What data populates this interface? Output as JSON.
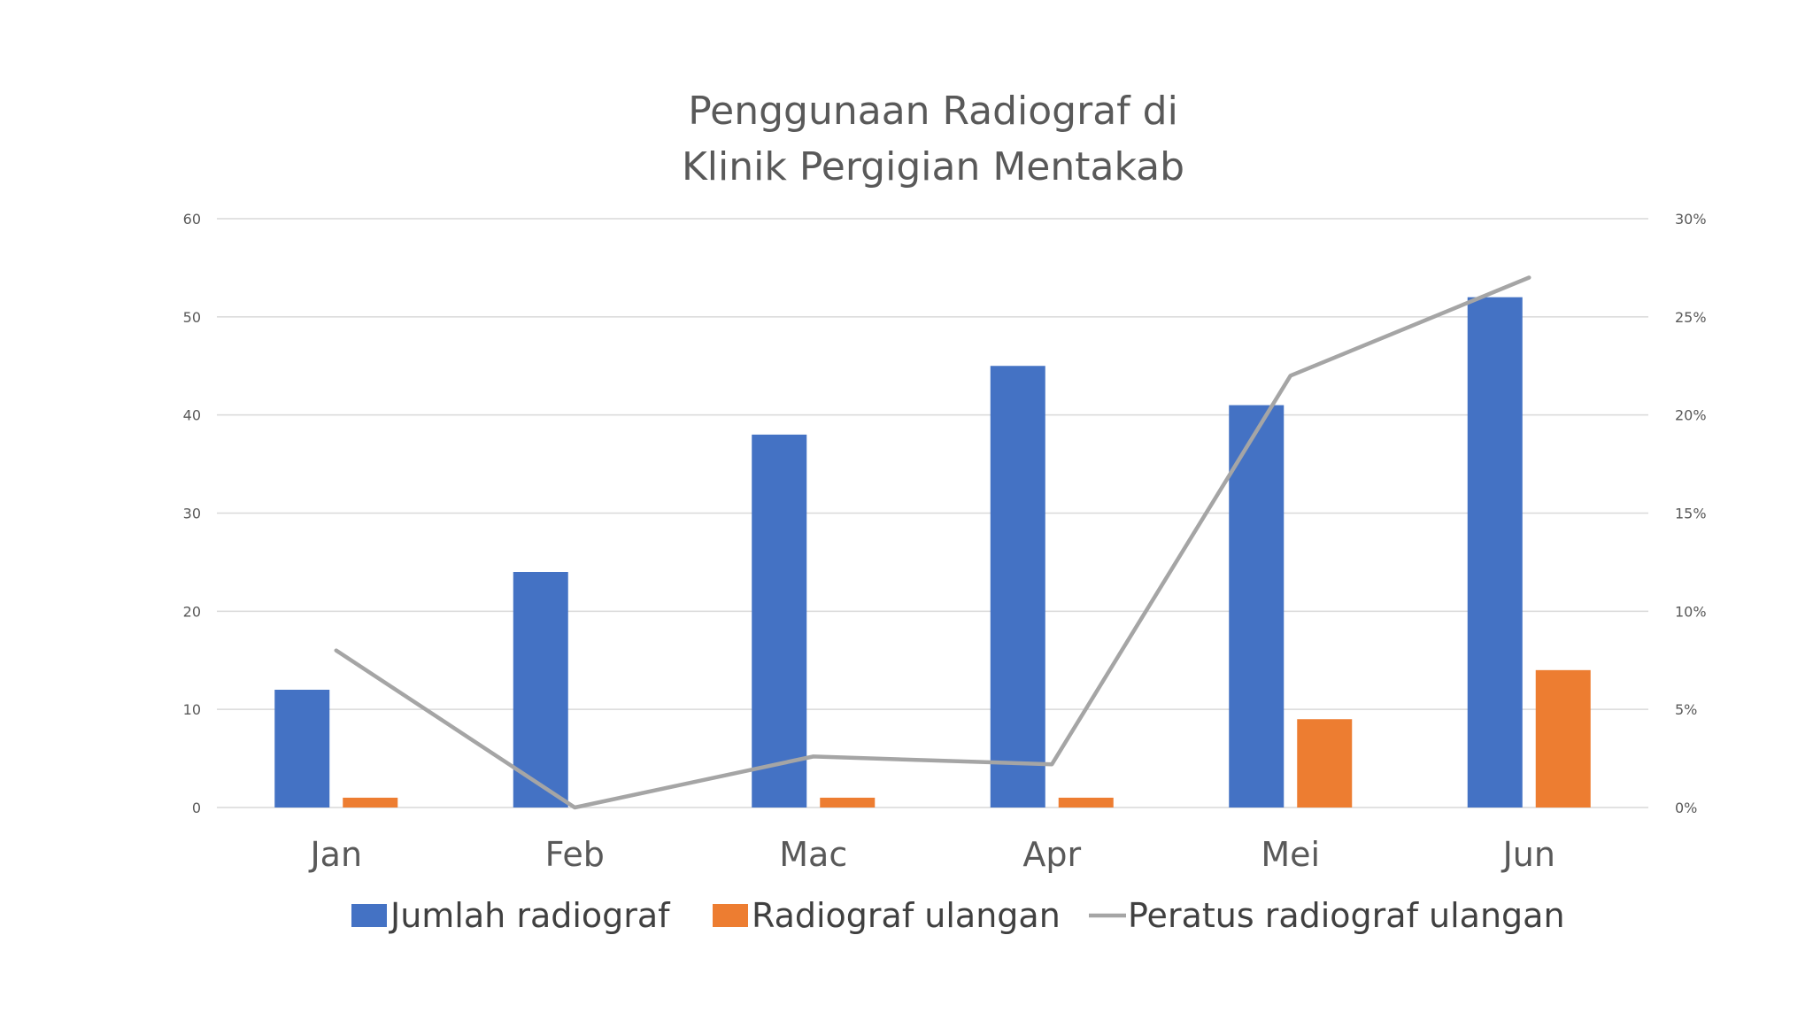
{
  "chart_data": {
    "type": "bar",
    "title_lines": [
      "Penggunaan Radiograf di",
      "Klinik Pergigian Mentakab"
    ],
    "categories": [
      "Jan",
      "Feb",
      "Mac",
      "Apr",
      "Mei",
      "Jun"
    ],
    "series": [
      {
        "name": "Jumlah radiograf",
        "type": "bar",
        "axis": "left",
        "color": "#4472C4",
        "values": [
          12,
          24,
          38,
          45,
          41,
          52
        ]
      },
      {
        "name": "Radiograf ulangan",
        "type": "bar",
        "axis": "left",
        "color": "#ED7D31",
        "values": [
          1,
          0,
          1,
          1,
          9,
          14
        ]
      },
      {
        "name": "Peratus radiograf ulangan",
        "type": "line",
        "axis": "right",
        "color": "#A5A5A5",
        "values": [
          0.08,
          0.0,
          0.026,
          0.022,
          0.22,
          0.27
        ]
      }
    ],
    "y_left": {
      "min": 0,
      "max": 60,
      "ticks": [
        "0",
        "10",
        "20",
        "30",
        "40",
        "50",
        "60"
      ]
    },
    "y_right": {
      "min": 0,
      "max": 0.3,
      "ticks": [
        "0%",
        "5%",
        "10%",
        "15%",
        "20%",
        "25%",
        "30%"
      ]
    },
    "grid": true,
    "legend_position": "bottom"
  }
}
